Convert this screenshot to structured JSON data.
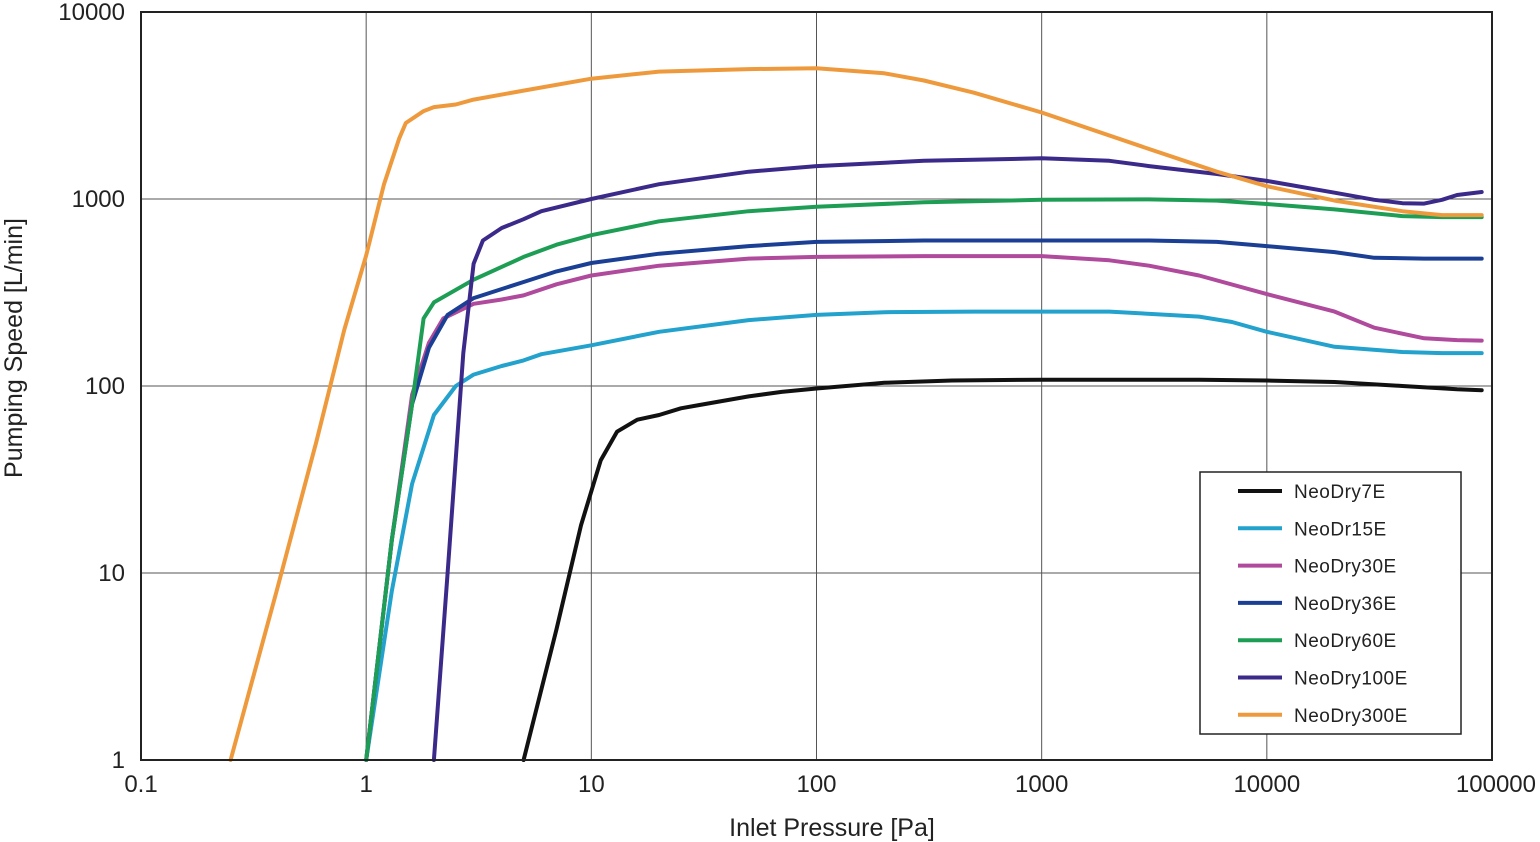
{
  "chart_data": {
    "type": "line",
    "title": "",
    "xlabel": "Inlet Pressure [Pa]",
    "ylabel": "Pumping Speed [L/min]",
    "xscale": "log",
    "yscale": "log",
    "xlim": [
      0.1,
      100000
    ],
    "ylim": [
      1,
      10000
    ],
    "x_ticks": [
      "0.1",
      "1",
      "10",
      "100",
      "1000",
      "10000",
      "100000"
    ],
    "y_ticks": [
      "1",
      "10",
      "100",
      "1000",
      "10000"
    ],
    "grid": true,
    "legend_position": "bottom-right",
    "series": [
      {
        "name": "NeoDry7E",
        "color": "#111111",
        "points": [
          [
            5,
            1
          ],
          [
            7,
            5
          ],
          [
            9,
            18
          ],
          [
            11,
            40
          ],
          [
            13,
            57
          ],
          [
            16,
            66
          ],
          [
            20,
            70
          ],
          [
            25,
            76
          ],
          [
            30,
            79
          ],
          [
            50,
            88
          ],
          [
            70,
            93
          ],
          [
            100,
            97
          ],
          [
            200,
            104
          ],
          [
            400,
            107
          ],
          [
            1000,
            108
          ],
          [
            2000,
            108
          ],
          [
            5000,
            108
          ],
          [
            10000,
            107
          ],
          [
            20000,
            105
          ],
          [
            40000,
            100
          ],
          [
            70000,
            96
          ],
          [
            90000,
            95
          ]
        ]
      },
      {
        "name": "NeoDr15E",
        "color": "#22a2cc",
        "points": [
          [
            1,
            1
          ],
          [
            1.3,
            8
          ],
          [
            1.6,
            30
          ],
          [
            2,
            70
          ],
          [
            2.5,
            100
          ],
          [
            3,
            115
          ],
          [
            4,
            128
          ],
          [
            5,
            137
          ],
          [
            6,
            148
          ],
          [
            10,
            165
          ],
          [
            20,
            195
          ],
          [
            50,
            225
          ],
          [
            100,
            240
          ],
          [
            200,
            248
          ],
          [
            500,
            250
          ],
          [
            1000,
            250
          ],
          [
            2000,
            250
          ],
          [
            5000,
            235
          ],
          [
            7000,
            220
          ],
          [
            10000,
            195
          ],
          [
            20000,
            162
          ],
          [
            40000,
            152
          ],
          [
            60000,
            150
          ],
          [
            90000,
            150
          ]
        ]
      },
      {
        "name": "NeoDry30E",
        "color": "#b04a9c",
        "points": [
          [
            1,
            1
          ],
          [
            1.3,
            15
          ],
          [
            1.6,
            90
          ],
          [
            1.9,
            170
          ],
          [
            2.2,
            230
          ],
          [
            3,
            275
          ],
          [
            4,
            290
          ],
          [
            5,
            305
          ],
          [
            7,
            350
          ],
          [
            10,
            390
          ],
          [
            20,
            440
          ],
          [
            50,
            480
          ],
          [
            100,
            490
          ],
          [
            300,
            495
          ],
          [
            1000,
            495
          ],
          [
            2000,
            470
          ],
          [
            3000,
            440
          ],
          [
            5000,
            390
          ],
          [
            10000,
            310
          ],
          [
            20000,
            250
          ],
          [
            30000,
            205
          ],
          [
            50000,
            180
          ],
          [
            70000,
            176
          ],
          [
            90000,
            175
          ]
        ]
      },
      {
        "name": "NeoDry36E",
        "color": "#1a3f94",
        "points": [
          [
            1,
            1
          ],
          [
            1.3,
            15
          ],
          [
            1.6,
            80
          ],
          [
            1.9,
            160
          ],
          [
            2.3,
            240
          ],
          [
            3,
            295
          ],
          [
            5,
            360
          ],
          [
            7,
            410
          ],
          [
            10,
            455
          ],
          [
            20,
            510
          ],
          [
            50,
            560
          ],
          [
            100,
            590
          ],
          [
            300,
            600
          ],
          [
            1000,
            600
          ],
          [
            2000,
            600
          ],
          [
            3000,
            600
          ],
          [
            6000,
            590
          ],
          [
            10000,
            560
          ],
          [
            20000,
            520
          ],
          [
            30000,
            485
          ],
          [
            50000,
            480
          ],
          [
            90000,
            480
          ]
        ]
      },
      {
        "name": "NeoDry60E",
        "color": "#1e9e55",
        "points": [
          [
            1,
            1
          ],
          [
            1.3,
            15
          ],
          [
            1.6,
            80
          ],
          [
            1.8,
            230
          ],
          [
            2,
            280
          ],
          [
            3,
            370
          ],
          [
            5,
            490
          ],
          [
            7,
            570
          ],
          [
            10,
            640
          ],
          [
            20,
            760
          ],
          [
            50,
            860
          ],
          [
            100,
            910
          ],
          [
            300,
            960
          ],
          [
            1000,
            990
          ],
          [
            3000,
            995
          ],
          [
            6000,
            980
          ],
          [
            10000,
            940
          ],
          [
            20000,
            880
          ],
          [
            40000,
            810
          ],
          [
            60000,
            800
          ],
          [
            90000,
            800
          ]
        ]
      },
      {
        "name": "NeoDry100E",
        "color": "#3c2a8a",
        "points": [
          [
            2,
            1
          ],
          [
            2.3,
            10
          ],
          [
            2.7,
            150
          ],
          [
            3,
            450
          ],
          [
            3.3,
            600
          ],
          [
            4,
            700
          ],
          [
            5,
            780
          ],
          [
            6,
            860
          ],
          [
            10,
            1000
          ],
          [
            20,
            1200
          ],
          [
            50,
            1400
          ],
          [
            100,
            1500
          ],
          [
            300,
            1600
          ],
          [
            1000,
            1650
          ],
          [
            2000,
            1600
          ],
          [
            3000,
            1500
          ],
          [
            6000,
            1360
          ],
          [
            10000,
            1250
          ],
          [
            20000,
            1080
          ],
          [
            30000,
            990
          ],
          [
            40000,
            950
          ],
          [
            50000,
            945
          ],
          [
            60000,
            990
          ],
          [
            70000,
            1050
          ],
          [
            90000,
            1090
          ]
        ]
      },
      {
        "name": "NeoDry300E",
        "color": "#ee9a3c",
        "points": [
          [
            0.25,
            1
          ],
          [
            0.4,
            8
          ],
          [
            0.6,
            50
          ],
          [
            0.8,
            200
          ],
          [
            1,
            500
          ],
          [
            1.2,
            1200
          ],
          [
            1.4,
            2100
          ],
          [
            1.5,
            2550
          ],
          [
            1.8,
            2950
          ],
          [
            2,
            3100
          ],
          [
            2.5,
            3200
          ],
          [
            3,
            3400
          ],
          [
            5,
            3800
          ],
          [
            10,
            4400
          ],
          [
            20,
            4800
          ],
          [
            50,
            4950
          ],
          [
            100,
            5000
          ],
          [
            200,
            4700
          ],
          [
            300,
            4300
          ],
          [
            500,
            3700
          ],
          [
            1000,
            2900
          ],
          [
            3000,
            1850
          ],
          [
            6000,
            1400
          ],
          [
            10000,
            1170
          ],
          [
            20000,
            980
          ],
          [
            40000,
            860
          ],
          [
            60000,
            820
          ],
          [
            90000,
            820
          ]
        ]
      }
    ]
  }
}
